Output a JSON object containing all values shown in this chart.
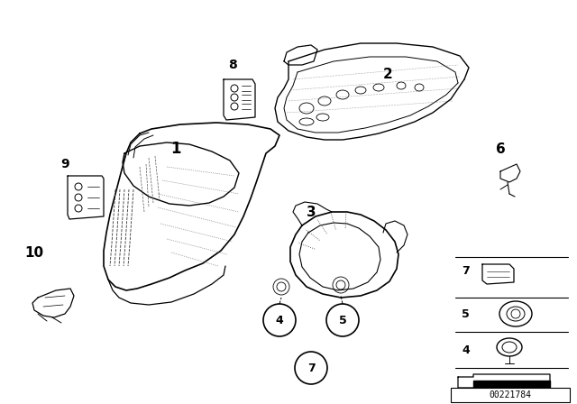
{
  "bg_color": "#ffffff",
  "fig_width": 6.4,
  "fig_height": 4.48,
  "dpi": 100,
  "diagram_id": "00221784"
}
